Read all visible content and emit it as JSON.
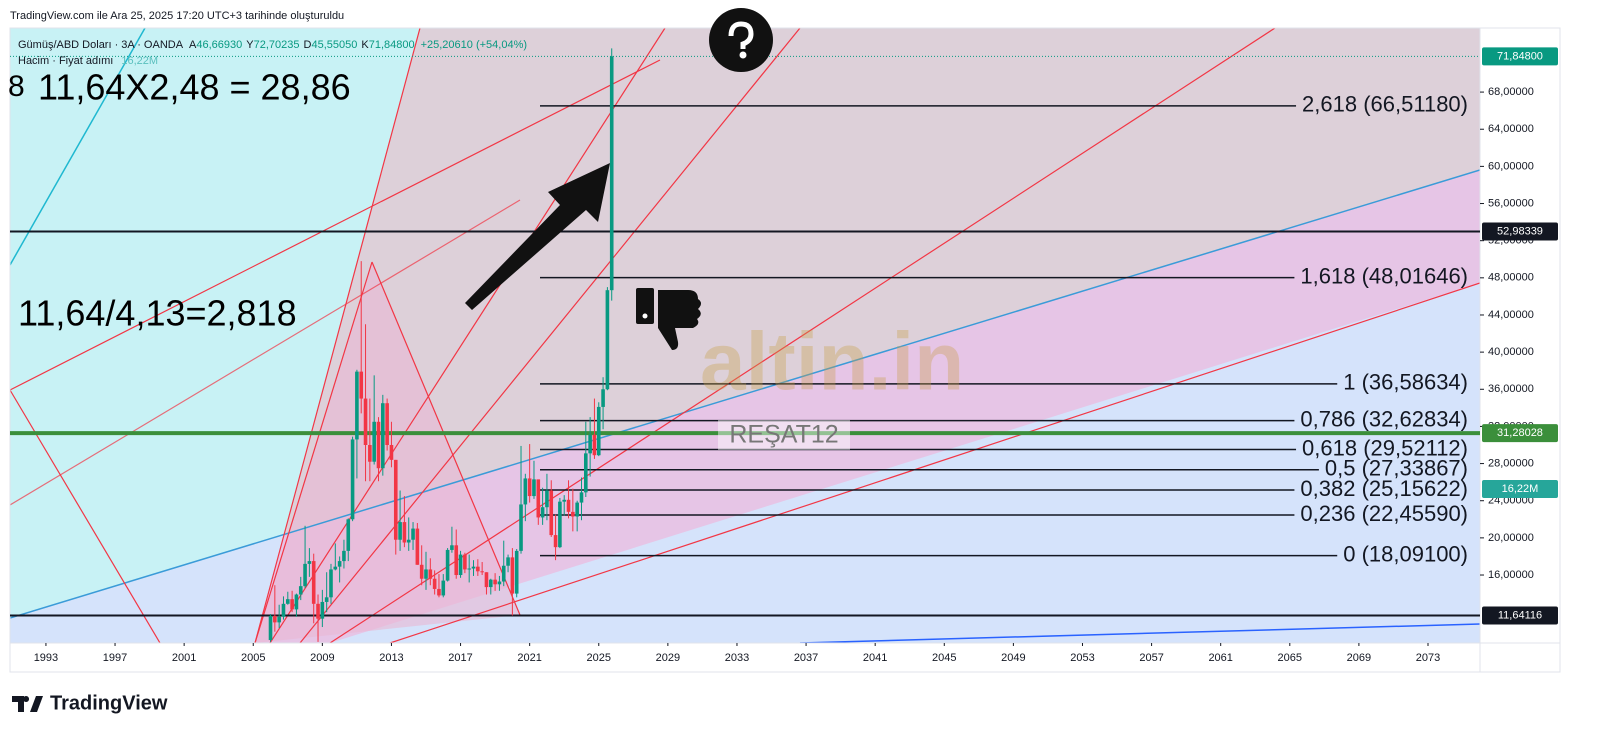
{
  "header": "TradingView.com ile Ara 25, 2025 17:20 UTC+3 tarihinde oluşturuldu",
  "legend": {
    "symbol": "Gümüş/ABD Doları · 3A · OANDA",
    "fields": [
      {
        "label": "A",
        "value": "46,66930"
      },
      {
        "label": "Y",
        "value": "72,70235"
      },
      {
        "label": "D",
        "value": "45,55050"
      },
      {
        "label": "K",
        "value": "71,84800"
      }
    ],
    "change": "+25,20610 (+54,04%)",
    "volume_title": "Hacim · Fiyat adımı",
    "volume_value": "16,22M"
  },
  "footer": "TradingView",
  "chart_data": {
    "type": "candlestick",
    "annotations": [
      "11,64X2,48 = 28,86",
      "11,64/4,13=2,818",
      "8"
    ],
    "watermark": "altin.in",
    "author": "REŞAT12",
    "up_color": "#089981",
    "down_color": "#f23645",
    "xlim": [
      1990.92,
      2076.01
    ],
    "xticks": [
      1993,
      1997,
      2001,
      2005,
      2009,
      2013,
      2017,
      2021,
      2025,
      2029,
      2033,
      2037,
      2041,
      2045,
      2049,
      2053,
      2057,
      2061,
      2065,
      2069,
      2073
    ],
    "ylim": [
      8.68,
      74.9
    ],
    "yticks": [
      {
        "value": 16,
        "label": "16,00000"
      },
      {
        "value": 20,
        "label": "20,00000"
      },
      {
        "value": 24,
        "label": "24,00000"
      },
      {
        "value": 28,
        "label": "28,00000"
      },
      {
        "value": 32,
        "label": "32,00000"
      },
      {
        "value": 36,
        "label": "36,00000"
      },
      {
        "value": 40,
        "label": "40,00000"
      },
      {
        "value": 44,
        "label": "44,00000"
      },
      {
        "value": 48,
        "label": "48,00000"
      },
      {
        "value": 52,
        "label": "52,00000"
      },
      {
        "value": 56,
        "label": "56,00000"
      },
      {
        "value": 60,
        "label": "60,00000"
      },
      {
        "value": 64,
        "label": "64,00000"
      },
      {
        "value": 68,
        "label": "68,00000"
      }
    ],
    "x": [
      2006,
      2006.25,
      2006.5,
      2006.75,
      2007,
      2007.25,
      2007.5,
      2007.75,
      2008,
      2008.25,
      2008.5,
      2008.75,
      2009,
      2009.25,
      2009.5,
      2009.75,
      2010,
      2010.25,
      2010.5,
      2010.75,
      2011,
      2011.25,
      2011.5,
      2011.75,
      2012,
      2012.25,
      2012.5,
      2012.75,
      2013,
      2013.25,
      2013.5,
      2013.75,
      2014,
      2014.25,
      2014.5,
      2014.75,
      2015,
      2015.25,
      2015.5,
      2015.75,
      2016,
      2016.25,
      2016.5,
      2016.75,
      2017,
      2017.25,
      2017.5,
      2017.75,
      2018,
      2018.25,
      2018.5,
      2018.75,
      2019,
      2019.25,
      2019.5,
      2019.75,
      2020,
      2020.25,
      2020.5,
      2020.75,
      2021,
      2021.25,
      2021.5,
      2021.75,
      2022,
      2022.25,
      2022.5,
      2022.75,
      2023,
      2023.25,
      2023.5,
      2023.75,
      2024,
      2024.25,
      2024.5,
      2024.75,
      2025,
      2025.25,
      2025.5,
      2025.75
    ],
    "open": [
      9.0,
      11.6,
      10.9,
      11.5,
      12.9,
      13.4,
      12.3,
      13.9,
      14.8,
      17.2,
      17.5,
      12.9,
      11.3,
      13.1,
      13.6,
      16.6,
      16.9,
      17.5,
      18.6,
      22.0,
      30.6,
      37.9,
      35.0,
      30.0,
      28.2,
      32.5,
      27.5,
      34.5,
      30.0,
      28.4,
      19.8,
      21.7,
      19.5,
      19.8,
      21.0,
      17.1,
      15.6,
      16.6,
      15.6,
      14.5,
      13.8,
      15.4,
      18.7,
      19.2,
      16.0,
      18.2,
      16.6,
      16.7,
      16.9,
      16.4,
      16.3,
      14.7,
      15.5,
      15.0,
      15.3,
      17.0,
      17.9,
      14.0,
      18.6,
      23.6,
      26.4,
      24.5,
      26.3,
      22.2,
      23.3,
      25.1,
      20.3,
      19.0,
      23.9,
      24.1,
      22.8,
      22.3,
      23.8,
      24.9,
      29.1,
      31.1,
      28.9,
      34.1,
      36.0,
      46.6693
    ],
    "high": [
      11.8,
      14.9,
      12.8,
      13.7,
      14.2,
      14.3,
      14.0,
      15.8,
      21.3,
      18.9,
      18.3,
      13.9,
      14.4,
      16.3,
      17.2,
      19.4,
      18.0,
      19.8,
      22.1,
      30.9,
      38.1,
      49.8,
      43.0,
      35.0,
      37.5,
      33.0,
      35.4,
      35.0,
      32.5,
      28.4,
      25.1,
      24.5,
      22.2,
      21.7,
      21.6,
      19.2,
      18.5,
      17.8,
      16.5,
      16.1,
      16.1,
      18.9,
      21.2,
      20.9,
      18.6,
      18.4,
      18.2,
      17.6,
      17.7,
      17.4,
      16.3,
      15.6,
      16.2,
      15.9,
      19.7,
      18.2,
      18.9,
      18.8,
      29.9,
      26.9,
      30.1,
      28.3,
      26.0,
      25.4,
      26.9,
      26.2,
      22.5,
      24.3,
      24.6,
      26.2,
      25.3,
      24.0,
      26.5,
      32.5,
      33.0,
      35.0,
      34.6,
      37.3,
      47.0,
      72.70235
    ],
    "low": [
      8.8,
      9.9,
      10.3,
      11.2,
      12.8,
      12.0,
      11.5,
      13.3,
      14.6,
      15.8,
      10.8,
      8.8,
      10.4,
      12.0,
      12.9,
      16.5,
      15.2,
      16.7,
      17.5,
      21.8,
      26.4,
      33.4,
      26.1,
      26.1,
      27.9,
      26.1,
      26.7,
      29.4,
      27.6,
      18.2,
      18.6,
      19.0,
      18.6,
      18.7,
      17.1,
      14.9,
      14.4,
      14.9,
      13.9,
      13.6,
      13.6,
      15.3,
      18.4,
      15.6,
      15.7,
      16.2,
      15.2,
      15.9,
      15.9,
      16.0,
      13.9,
      13.9,
      14.3,
      14.3,
      14.8,
      16.3,
      11.64,
      13.6,
      18.3,
      21.8,
      23.8,
      24.2,
      21.4,
      21.4,
      21.9,
      20.1,
      17.6,
      18.9,
      22.4,
      22.1,
      20.7,
      20.7,
      21.9,
      24.4,
      26.6,
      28.5,
      28.8,
      31.7,
      35.9,
      45.5505
    ],
    "close": [
      11.6,
      10.9,
      11.5,
      12.9,
      13.4,
      12.3,
      13.9,
      14.8,
      17.2,
      17.5,
      12.9,
      11.3,
      13.1,
      13.6,
      16.6,
      16.9,
      17.5,
      18.6,
      22.0,
      30.6,
      37.9,
      35.0,
      30.0,
      28.2,
      32.5,
      27.5,
      34.5,
      30.0,
      28.4,
      19.8,
      21.7,
      19.5,
      19.8,
      21.0,
      17.1,
      15.6,
      16.6,
      15.6,
      14.5,
      13.8,
      15.4,
      18.7,
      19.2,
      16.0,
      18.2,
      16.6,
      16.7,
      16.9,
      16.4,
      16.3,
      14.7,
      15.5,
      15.0,
      15.3,
      17.0,
      17.9,
      14.0,
      18.6,
      23.6,
      26.4,
      24.5,
      26.3,
      22.2,
      23.3,
      25.1,
      20.3,
      19.0,
      23.9,
      24.1,
      22.8,
      22.3,
      23.8,
      24.9,
      29.1,
      31.1,
      28.9,
      34.1,
      36.0,
      46.67,
      71.848
    ],
    "fib_levels": [
      {
        "label": "2,618 (66,51180)",
        "value": 66.5118
      },
      {
        "label": "1,618 (48,01646)",
        "value": 48.01646
      },
      {
        "label": "1 (36,58634)",
        "value": 36.58634
      },
      {
        "label": "0,786 (32,62834)",
        "value": 32.62834
      },
      {
        "label": "0,618 (29,52112)",
        "value": 29.52112
      },
      {
        "label": "0,5 (27,33867)",
        "value": 27.33867
      },
      {
        "label": "0,382 (25,15622)",
        "value": 25.15622
      },
      {
        "label": "0,236 (22,45590)",
        "value": 22.4559
      },
      {
        "label": "0 (18,09100)",
        "value": 18.091
      }
    ],
    "price_lines": [
      {
        "value": 71.848,
        "label": "71,84800",
        "color": "#089981"
      },
      {
        "value": 52.98339,
        "label": "52,98339",
        "color": "#131722"
      },
      {
        "value": 31.28028,
        "label": "31,28028",
        "color": "#3b8f3b"
      },
      {
        "value": 11.64116,
        "label": "11,64116",
        "color": "#131722"
      }
    ]
  }
}
